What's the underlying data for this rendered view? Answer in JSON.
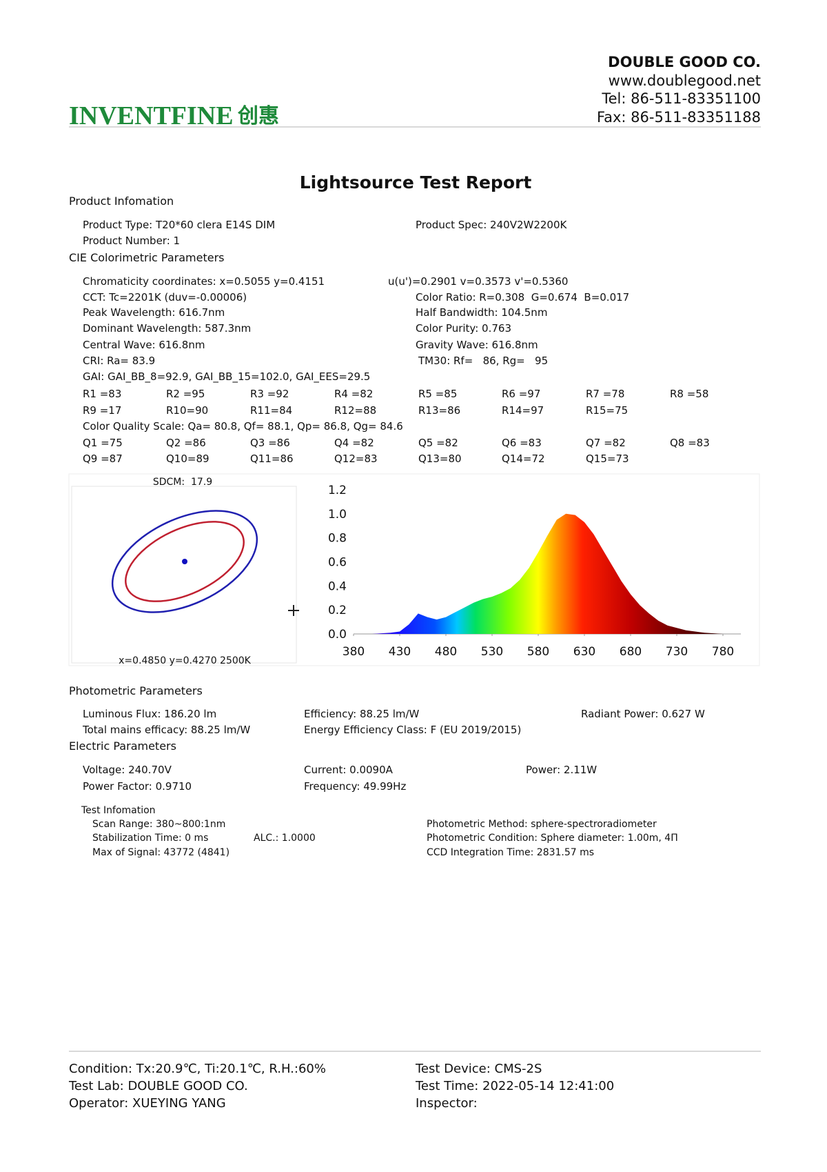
{
  "header": {
    "company": "DOUBLE GOOD CO.",
    "website": "www.doublegood.net",
    "tel": "Tel: 86-511-83351100",
    "fax": "Fax: 86-511-83351188",
    "logo": "INVENTFINE",
    "logo_cn": "创惠"
  },
  "title": "Lightsource Test Report",
  "product_info": {
    "heading": "Product Infomation",
    "rows": [
      [
        "Product Type: T20*60 clera E14S DIM",
        "Product Spec: 240V2W2200K"
      ],
      [
        "Product Number: 1"
      ]
    ]
  },
  "cie": {
    "heading": "CIE Colorimetric Parameters",
    "rows": [
      [
        "Chromaticity coordinates: x=0.5055 y=0.4151",
        "u(u')=0.2901 v=0.3573 v'=0.5360"
      ],
      [
        "CCT: Tc=2201K (duv=-0.00006)",
        "Color Ratio: R=0.308  G=0.674  B=0.017"
      ],
      [
        "Peak Wavelength: 616.7nm",
        "Half Bandwidth: 104.5nm"
      ],
      [
        "Dominant Wavelength: 587.3nm",
        "Color Purity: 0.763"
      ],
      [
        "Central Wave: 616.8nm",
        "Gravity Wave: 616.8nm"
      ],
      [
        "CRI: Ra= 83.9",
        "TM30: Rf=   86, Rg=   95"
      ],
      [
        "GAI: GAI_BB_8=92.9, GAI_BB_15=102.0, GAI_EES=29.5"
      ],
      [
        "R1 =83",
        "R2 =95",
        "R3 =92",
        "R4 =82",
        "R5 =85",
        "R6 =97",
        "R7 =78",
        "R8 =58"
      ],
      [
        "R9 =17",
        "R10=90",
        "R11=84",
        "R12=88",
        "R13=86",
        "R14=97",
        "R15=75"
      ],
      [
        "Color Quality Scale: Qa= 80.8, Qf= 88.1, Qp= 86.8, Qg= 84.6"
      ],
      [
        "Q1 =75",
        "Q2 =86",
        "Q3 =86",
        "Q4 =82",
        "Q5 =82",
        "Q6 =83",
        "Q7 =82",
        "Q8 =83"
      ],
      [
        "Q9 =87",
        "Q10=89",
        "Q11=86",
        "Q12=83",
        "Q13=80",
        "Q14=72",
        "Q15=73"
      ]
    ]
  },
  "sdcm": {
    "label": "SDCM:  17.9",
    "target": "x=0.4850 y=0.4270 2500K"
  },
  "spectrum": {
    "type": "area",
    "x": [
      380,
      390,
      400,
      410,
      420,
      430,
      440,
      450,
      460,
      470,
      480,
      490,
      500,
      510,
      520,
      530,
      540,
      550,
      560,
      570,
      580,
      590,
      600,
      610,
      620,
      630,
      640,
      650,
      660,
      670,
      680,
      690,
      700,
      710,
      720,
      730,
      740,
      750,
      760,
      770,
      780
    ],
    "values": [
      0,
      0,
      0,
      0.005,
      0.01,
      0.02,
      0.08,
      0.17,
      0.14,
      0.12,
      0.14,
      0.18,
      0.22,
      0.26,
      0.29,
      0.31,
      0.34,
      0.38,
      0.45,
      0.55,
      0.68,
      0.82,
      0.95,
      1.0,
      0.99,
      0.93,
      0.83,
      0.7,
      0.57,
      0.44,
      0.33,
      0.24,
      0.17,
      0.11,
      0.07,
      0.05,
      0.03,
      0.02,
      0.01,
      0.005,
      0
    ],
    "xlim": [
      380,
      780
    ],
    "ylim": [
      0,
      1.2
    ],
    "xticks": [
      380,
      430,
      480,
      530,
      580,
      630,
      680,
      730,
      780
    ],
    "yticks": [
      {
        "value": 0,
        "label": "0.0"
      },
      0.2,
      0.4,
      0.6,
      0.8,
      {
        "value": 1,
        "label": "1.0"
      },
      1.2
    ]
  },
  "photometric": {
    "heading": "Photometric Parameters",
    "rows": [
      [
        "Luminous Flux: 186.20 lm",
        "Efficiency: 88.25 lm/W",
        "Radiant Power: 0.627 W"
      ],
      [
        "Total mains efficacy: 88.25 lm/W",
        "Energy Efficiency Class: F (EU 2019/2015)"
      ]
    ]
  },
  "electric": {
    "heading": "Electric Parameters",
    "rows": [
      [
        "Voltage: 240.70V",
        "Current: 0.0090A",
        "Power: 2.11W"
      ],
      [
        "Power Factor: 0.9710",
        "Frequency: 49.99Hz"
      ]
    ]
  },
  "test_info": {
    "heading": "Test Infomation",
    "rows": [
      [
        "Scan Range: 380~800:1nm",
        "Photometric Method: sphere-spectroradiometer"
      ],
      [
        "Stabilization Time: 0 ms",
        "ALC.: 1.0000",
        "Photometric Condition: Sphere diameter: 1.00m, 4Π"
      ],
      [
        "Max of Signal: 43772 (4841)",
        "CCD Integration Time: 2831.57 ms"
      ]
    ]
  },
  "footer": {
    "rows": [
      [
        "Condition: Tx:20.9℃, Ti:20.1℃, R.H.:60%",
        "Test Device: CMS-2S"
      ],
      [
        "Test Lab: DOUBLE GOOD CO.",
        "Test Time: 2022-05-14 12:41:00"
      ],
      [
        "Operator: XUEYING YANG",
        "Inspector:"
      ]
    ]
  }
}
